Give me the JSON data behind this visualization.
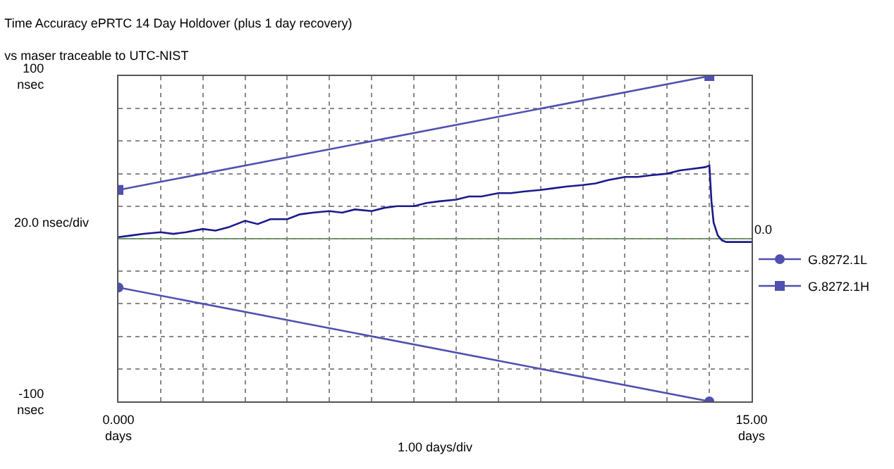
{
  "chart_data": {
    "type": "line",
    "title": "Time Accuracy ePRTC 14 Day Holdover (plus 1 day recovery)",
    "subtitle": "vs maser traceable to UTC-NIST",
    "series": [
      {
        "color": "#1a1a8c",
        "x": [
          0,
          0.3,
          0.6,
          1,
          1.3,
          1.6,
          2,
          2.3,
          2.6,
          3,
          3.3,
          3.6,
          4,
          4.3,
          4.6,
          5,
          5.3,
          5.6,
          6,
          6.3,
          6.6,
          7,
          7.3,
          7.6,
          8,
          8.3,
          8.6,
          9,
          9.3,
          9.6,
          10,
          10.3,
          10.6,
          11,
          11.3,
          11.6,
          12,
          12.3,
          12.6,
          13,
          13.3,
          13.6,
          13.9,
          14,
          14.05,
          14.1,
          14.2,
          14.3,
          14.4,
          14.6,
          14.8,
          15
        ],
        "values": [
          1,
          2,
          3,
          4,
          3,
          4,
          6,
          5,
          7,
          11,
          9,
          12,
          12,
          15,
          16,
          17,
          16,
          18,
          17,
          19,
          20,
          20,
          22,
          23,
          24,
          26,
          26,
          28,
          28,
          29,
          30,
          31,
          32,
          33,
          34,
          36,
          38,
          38,
          39,
          40,
          42,
          43,
          44,
          45,
          23,
          10,
          2,
          -1,
          -2,
          -2,
          -2,
          -2
        ]
      },
      {
        "name": "G.8272.1L",
        "color": "#5050b0",
        "marker": "circle",
        "x": [
          0,
          14
        ],
        "values": [
          -30,
          -100
        ]
      },
      {
        "name": "G.8272.1H",
        "color": "#5050b0",
        "marker": "square",
        "x": [
          0,
          14
        ],
        "values": [
          30,
          100
        ]
      }
    ],
    "xlim": [
      0,
      15
    ],
    "xticks": [
      {
        "value": 0,
        "label": "0.000\ndays"
      },
      {
        "value": 1,
        "label": null
      },
      {
        "value": 2,
        "label": null
      },
      {
        "value": 3,
        "label": null
      },
      {
        "value": 4,
        "label": null
      },
      {
        "value": 5,
        "label": null
      },
      {
        "value": 6,
        "label": null
      },
      {
        "value": 7,
        "label": null
      },
      {
        "value": 8,
        "label": null
      },
      {
        "value": 9,
        "label": null
      },
      {
        "value": 10,
        "label": null
      },
      {
        "value": 11,
        "label": null
      },
      {
        "value": 12,
        "label": null
      },
      {
        "value": 13,
        "label": null
      },
      {
        "value": 14,
        "label": null
      },
      {
        "value": 15,
        "label": "15.00\ndays"
      }
    ],
    "ylim": [
      -100,
      100
    ],
    "yticks": [
      {
        "value": -100,
        "label": "-100\nnsec"
      },
      {
        "value": -80,
        "label": null
      },
      {
        "value": -60,
        "label": null
      },
      {
        "value": -40,
        "label": null
      },
      {
        "value": -20,
        "label": null
      },
      {
        "value": 0,
        "label": null
      },
      {
        "value": 20,
        "label": null
      },
      {
        "value": 40,
        "label": null
      },
      {
        "value": 60,
        "label": null
      },
      {
        "value": 80,
        "label": null
      },
      {
        "value": 100,
        "label": "100\nnsec"
      }
    ],
    "xlabel": "1.00 days/div",
    "annotations": [
      "20.0 nsec/div"
    ],
    "ref_lines": [
      {
        "axis": "y",
        "value": 0,
        "label": "0.0",
        "color": "#5a9a4a"
      }
    ],
    "grid": true,
    "legend": "right",
    "marker": "none",
    "line_style": "solid"
  }
}
